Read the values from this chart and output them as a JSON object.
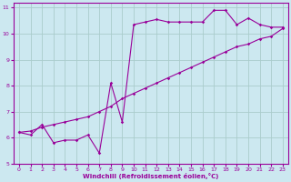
{
  "xlabel": "Windchill (Refroidissement éolien,°C)",
  "background_color": "#cce8f0",
  "grid_color": "#aacccc",
  "line_color": "#990099",
  "xlim": [
    -0.5,
    23.5
  ],
  "ylim": [
    5,
    11.2
  ],
  "xticks": [
    0,
    1,
    2,
    3,
    4,
    5,
    6,
    7,
    8,
    9,
    10,
    11,
    12,
    13,
    14,
    15,
    16,
    17,
    18,
    19,
    20,
    21,
    22,
    23
  ],
  "yticks": [
    5,
    6,
    7,
    8,
    9,
    10,
    11
  ],
  "line1_x": [
    0,
    1,
    2,
    3,
    4,
    5,
    6,
    7,
    8,
    9,
    10,
    11,
    12,
    13,
    14,
    15,
    16,
    17,
    18,
    19,
    20,
    21,
    22,
    23
  ],
  "line1_y": [
    6.2,
    6.1,
    6.5,
    5.8,
    5.9,
    5.9,
    6.1,
    5.4,
    8.1,
    6.6,
    10.35,
    10.45,
    10.55,
    10.45,
    10.45,
    10.45,
    10.45,
    10.9,
    10.9,
    10.35,
    10.6,
    10.35,
    10.25,
    10.25
  ],
  "line2_x": [
    0,
    1,
    2,
    3,
    4,
    5,
    6,
    7,
    8,
    9,
    10,
    11,
    12,
    13,
    14,
    15,
    16,
    17,
    18,
    19,
    20,
    21,
    22,
    23
  ],
  "line2_y": [
    6.2,
    6.25,
    6.4,
    6.5,
    6.6,
    6.7,
    6.8,
    7.0,
    7.2,
    7.5,
    7.7,
    7.9,
    8.1,
    8.3,
    8.5,
    8.7,
    8.9,
    9.1,
    9.3,
    9.5,
    9.6,
    9.8,
    9.9,
    10.2
  ],
  "tick_fontsize": 4.5,
  "xlabel_fontsize": 5
}
